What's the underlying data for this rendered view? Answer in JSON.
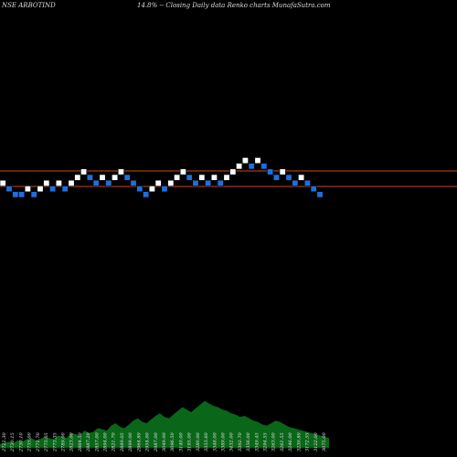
{
  "header": {
    "symbol_label": "NSE ARBOTIND",
    "description": "14.8% -- Closing Daily data Renko charts MunafaSutra.com"
  },
  "chart_data": {
    "type": "renko",
    "resistance_levels": [
      187,
      204
    ],
    "level_color": "#c84a1e",
    "up_color": "#ffffff",
    "down_color": "#1e6fe0",
    "bricks": [
      {
        "dir": "up",
        "row": 4
      },
      {
        "dir": "down",
        "row": 3
      },
      {
        "dir": "down",
        "row": 2
      },
      {
        "dir": "down",
        "row": 2
      },
      {
        "dir": "up",
        "row": 3
      },
      {
        "dir": "down",
        "row": 2
      },
      {
        "dir": "up",
        "row": 3
      },
      {
        "dir": "up",
        "row": 4
      },
      {
        "dir": "down",
        "row": 3
      },
      {
        "dir": "up",
        "row": 4
      },
      {
        "dir": "down",
        "row": 3
      },
      {
        "dir": "up",
        "row": 4
      },
      {
        "dir": "up",
        "row": 5
      },
      {
        "dir": "up",
        "row": 6
      },
      {
        "dir": "down",
        "row": 5
      },
      {
        "dir": "down",
        "row": 4
      },
      {
        "dir": "up",
        "row": 5
      },
      {
        "dir": "down",
        "row": 4
      },
      {
        "dir": "up",
        "row": 5
      },
      {
        "dir": "up",
        "row": 6
      },
      {
        "dir": "down",
        "row": 5
      },
      {
        "dir": "down",
        "row": 4
      },
      {
        "dir": "down",
        "row": 3
      },
      {
        "dir": "down",
        "row": 2
      },
      {
        "dir": "up",
        "row": 3
      },
      {
        "dir": "up",
        "row": 4
      },
      {
        "dir": "down",
        "row": 3
      },
      {
        "dir": "up",
        "row": 4
      },
      {
        "dir": "up",
        "row": 5
      },
      {
        "dir": "up",
        "row": 6
      },
      {
        "dir": "down",
        "row": 5
      },
      {
        "dir": "down",
        "row": 4
      },
      {
        "dir": "up",
        "row": 5
      },
      {
        "dir": "down",
        "row": 4
      },
      {
        "dir": "up",
        "row": 5
      },
      {
        "dir": "down",
        "row": 4
      },
      {
        "dir": "up",
        "row": 5
      },
      {
        "dir": "up",
        "row": 6
      },
      {
        "dir": "up",
        "row": 7
      },
      {
        "dir": "up",
        "row": 8
      },
      {
        "dir": "down",
        "row": 7
      },
      {
        "dir": "up",
        "row": 8
      },
      {
        "dir": "down",
        "row": 7
      },
      {
        "dir": "down",
        "row": 6
      },
      {
        "dir": "down",
        "row": 5
      },
      {
        "dir": "up",
        "row": 6
      },
      {
        "dir": "down",
        "row": 5
      },
      {
        "dir": "down",
        "row": 4
      },
      {
        "dir": "up",
        "row": 5
      },
      {
        "dir": "down",
        "row": 4
      },
      {
        "dir": "down",
        "row": 3
      },
      {
        "dir": "down",
        "row": 2
      }
    ],
    "volume_color": "#0b6b1a",
    "volume_profile": [
      3,
      4,
      5,
      4,
      6,
      5,
      7,
      8,
      6,
      7,
      9,
      8,
      7,
      10,
      9,
      8,
      12,
      11,
      10,
      14,
      12,
      13,
      16,
      15,
      14,
      18,
      20,
      17,
      16,
      19,
      22,
      24,
      21,
      20,
      23,
      26,
      28,
      25,
      24,
      27,
      30,
      33,
      31,
      29,
      32,
      35,
      38,
      36,
      34,
      33,
      31,
      30,
      28,
      27,
      25,
      26,
      24,
      22,
      21,
      19,
      18,
      20,
      22,
      21,
      19,
      17,
      16,
      15,
      14,
      13,
      12,
      11,
      10,
      9,
      8
    ],
    "tick_labels": [
      "2722.30",
      "2730.15",
      "2730.10",
      "2735.00",
      "2771.70",
      "2773.05",
      "2773.35",
      "2789.00",
      "2823.00",
      "2864.50",
      "2887.20",
      "2857.00",
      "2894.00",
      "2821.70",
      "2889.05",
      "2899.00",
      "2964.80",
      "2954.00",
      "2987.00",
      "3049.00",
      "3096.50",
      "3140.00",
      "3195.00",
      "3280.00",
      "3353.60",
      "3348.00",
      "3389.00",
      "3432.00",
      "3392.70",
      "3356.00",
      "3349.45",
      "3294.55",
      "3263.00",
      "3261.55",
      "3246.00",
      "3230.80",
      "3172.55",
      "3122.00",
      "3075.00"
    ]
  }
}
